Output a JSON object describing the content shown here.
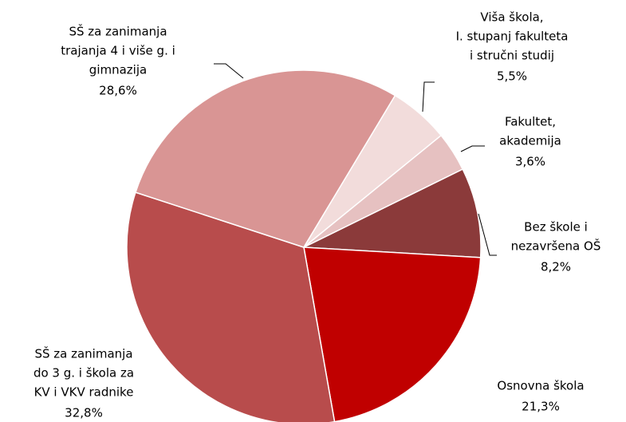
{
  "chart_data": {
    "type": "pie",
    "categories": [
      [
        "Bez škole i",
        "nezavršena OŠ"
      ],
      [
        "Osnovna škola"
      ],
      [
        "SŠ za zanimanja",
        "do 3 g. i škola za",
        "KV i VKV radnike"
      ],
      [
        "SŠ za zanimanja",
        "trajanja 4 i više g. i",
        "gimnazija"
      ],
      [
        "Viša škola,",
        "I. stupanj fakulteta",
        "i stručni studij"
      ],
      [
        "Fakultet,",
        "akademija"
      ]
    ],
    "values": [
      8.2,
      21.3,
      32.8,
      28.6,
      5.5,
      3.6
    ],
    "value_labels": [
      "8,2%",
      "21,3%",
      "32,8%",
      "28,6%",
      "5,5%",
      "3,6%"
    ],
    "colors": [
      "#8b3a3a",
      "#c00000",
      "#b84c4c",
      "#d99594",
      "#f2dcdb",
      "#e6c1c1"
    ]
  }
}
